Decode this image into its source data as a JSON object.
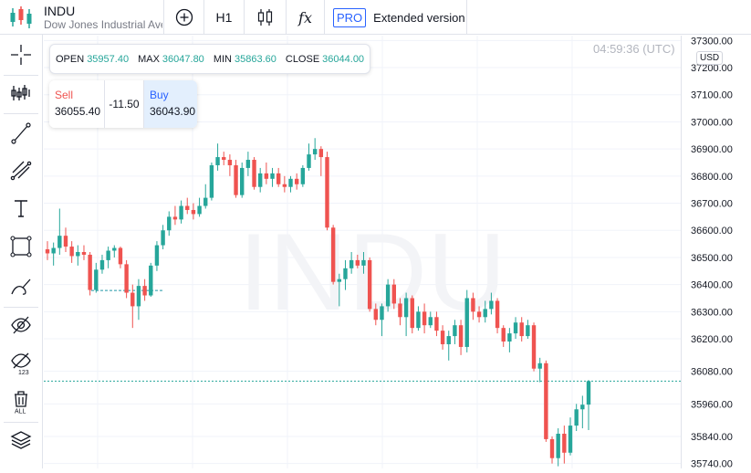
{
  "header": {
    "ticker": "INDU",
    "name": "Dow Jones Industrial Ave",
    "interval": "H1",
    "indicators_symbol": "fx",
    "pro_badge": "PRO",
    "extended_label": "Extended version",
    "colors": {
      "accent": "#2962ff",
      "up": "#26a69a",
      "down": "#ef5350"
    }
  },
  "legend": {
    "open_label": "OPEN",
    "open": "35957.40",
    "max_label": "MAX",
    "max": "36047.80",
    "min_label": "MIN",
    "min": "35863.60",
    "close_label": "CLOSE",
    "close": "36044.00"
  },
  "trade": {
    "sell_label": "Sell",
    "sell_price": "36055.40",
    "spread": "-11.50",
    "buy_label": "Buy",
    "buy_price": "36043.90"
  },
  "clock": "04:59:36 (UTC)",
  "currency": "USD",
  "sidebar_icons": [
    "crosshair-icon",
    "indicators-icon",
    "trendline-icon",
    "fib-icon",
    "text-icon",
    "rectangle-icon",
    "brush-icon",
    "hide-drawings-icon",
    "hide-labels-icon",
    "delete-all-icon",
    "layers-icon"
  ],
  "chart_data": {
    "type": "candlestick",
    "watermark": "INDU",
    "yaxis_ticks": [
      37300,
      37200,
      37100,
      37000,
      36900,
      36800,
      36700,
      36600,
      36500,
      36400,
      36300,
      36200,
      36080,
      35960,
      35840,
      35740
    ],
    "yaxis_tick_labels": [
      "37300.00",
      "37200.00",
      "37100.00",
      "37000.00",
      "36900.00",
      "36800.00",
      "36700.00",
      "36600.00",
      "36500.00",
      "36400.00",
      "36300.00",
      "36200.00",
      "36080.00",
      "35960.00",
      "35840.00",
      "35740.00"
    ],
    "ylim": [
      35722,
      37318
    ],
    "grid": true,
    "current_price": 36044.0,
    "gap_line_price": 36378,
    "candles": [
      {
        "o": 36530,
        "h": 36560,
        "l": 36490,
        "c": 36515
      },
      {
        "o": 36515,
        "h": 36555,
        "l": 36470,
        "c": 36535
      },
      {
        "o": 36535,
        "h": 36680,
        "l": 36510,
        "c": 36580
      },
      {
        "o": 36580,
        "h": 36610,
        "l": 36520,
        "c": 36540
      },
      {
        "o": 36540,
        "h": 36560,
        "l": 36480,
        "c": 36505
      },
      {
        "o": 36505,
        "h": 36545,
        "l": 36470,
        "c": 36520
      },
      {
        "o": 36520,
        "h": 36545,
        "l": 36490,
        "c": 36510
      },
      {
        "o": 36510,
        "h": 36520,
        "l": 36360,
        "c": 36380
      },
      {
        "o": 36380,
        "h": 36480,
        "l": 36370,
        "c": 36455
      },
      {
        "o": 36455,
        "h": 36510,
        "l": 36440,
        "c": 36490
      },
      {
        "o": 36490,
        "h": 36540,
        "l": 36460,
        "c": 36525
      },
      {
        "o": 36525,
        "h": 36545,
        "l": 36500,
        "c": 36535
      },
      {
        "o": 36535,
        "h": 36540,
        "l": 36460,
        "c": 36475
      },
      {
        "o": 36475,
        "h": 36490,
        "l": 36350,
        "c": 36370
      },
      {
        "o": 36370,
        "h": 36400,
        "l": 36240,
        "c": 36320
      },
      {
        "o": 36320,
        "h": 36420,
        "l": 36270,
        "c": 36395
      },
      {
        "o": 36395,
        "h": 36420,
        "l": 36340,
        "c": 36360
      },
      {
        "o": 36360,
        "h": 36480,
        "l": 36355,
        "c": 36470
      },
      {
        "o": 36470,
        "h": 36560,
        "l": 36450,
        "c": 36545
      },
      {
        "o": 36545,
        "h": 36620,
        "l": 36530,
        "c": 36600
      },
      {
        "o": 36600,
        "h": 36670,
        "l": 36580,
        "c": 36650
      },
      {
        "o": 36650,
        "h": 36690,
        "l": 36620,
        "c": 36640
      },
      {
        "o": 36640,
        "h": 36710,
        "l": 36625,
        "c": 36690
      },
      {
        "o": 36690,
        "h": 36720,
        "l": 36660,
        "c": 36675
      },
      {
        "o": 36675,
        "h": 36700,
        "l": 36640,
        "c": 36660
      },
      {
        "o": 36660,
        "h": 36720,
        "l": 36650,
        "c": 36690
      },
      {
        "o": 36690,
        "h": 36770,
        "l": 36680,
        "c": 36720
      },
      {
        "o": 36720,
        "h": 36850,
        "l": 36710,
        "c": 36840
      },
      {
        "o": 36840,
        "h": 36920,
        "l": 36820,
        "c": 36870
      },
      {
        "o": 36870,
        "h": 36890,
        "l": 36840,
        "c": 36860
      },
      {
        "o": 36860,
        "h": 36880,
        "l": 36800,
        "c": 36840
      },
      {
        "o": 36840,
        "h": 36860,
        "l": 36720,
        "c": 36730
      },
      {
        "o": 36730,
        "h": 36850,
        "l": 36720,
        "c": 36830
      },
      {
        "o": 36830,
        "h": 36890,
        "l": 36800,
        "c": 36860
      },
      {
        "o": 36860,
        "h": 36870,
        "l": 36750,
        "c": 36760
      },
      {
        "o": 36760,
        "h": 36830,
        "l": 36740,
        "c": 36810
      },
      {
        "o": 36810,
        "h": 36850,
        "l": 36770,
        "c": 36790
      },
      {
        "o": 36790,
        "h": 36830,
        "l": 36760,
        "c": 36810
      },
      {
        "o": 36810,
        "h": 36830,
        "l": 36760,
        "c": 36770
      },
      {
        "o": 36770,
        "h": 36800,
        "l": 36740,
        "c": 36760
      },
      {
        "o": 36760,
        "h": 36800,
        "l": 36740,
        "c": 36790
      },
      {
        "o": 36790,
        "h": 36810,
        "l": 36750,
        "c": 36770
      },
      {
        "o": 36770,
        "h": 36840,
        "l": 36760,
        "c": 36830
      },
      {
        "o": 36830,
        "h": 36920,
        "l": 36820,
        "c": 36880
      },
      {
        "o": 36880,
        "h": 36940,
        "l": 36860,
        "c": 36900
      },
      {
        "o": 36900,
        "h": 36910,
        "l": 36800,
        "c": 36870
      },
      {
        "o": 36870,
        "h": 36890,
        "l": 36600,
        "c": 36610
      },
      {
        "o": 36610,
        "h": 36620,
        "l": 36400,
        "c": 36410
      },
      {
        "o": 36410,
        "h": 36440,
        "l": 36320,
        "c": 36420
      },
      {
        "o": 36420,
        "h": 36490,
        "l": 36380,
        "c": 36460
      },
      {
        "o": 36460,
        "h": 36520,
        "l": 36440,
        "c": 36490
      },
      {
        "o": 36490,
        "h": 36510,
        "l": 36460,
        "c": 36470
      },
      {
        "o": 36470,
        "h": 36520,
        "l": 36440,
        "c": 36490
      },
      {
        "o": 36490,
        "h": 36500,
        "l": 36300,
        "c": 36310
      },
      {
        "o": 36310,
        "h": 36330,
        "l": 36250,
        "c": 36270
      },
      {
        "o": 36270,
        "h": 36330,
        "l": 36210,
        "c": 36320
      },
      {
        "o": 36320,
        "h": 36420,
        "l": 36300,
        "c": 36400
      },
      {
        "o": 36400,
        "h": 36420,
        "l": 36310,
        "c": 36330
      },
      {
        "o": 36330,
        "h": 36350,
        "l": 36250,
        "c": 36280
      },
      {
        "o": 36280,
        "h": 36370,
        "l": 36210,
        "c": 36350
      },
      {
        "o": 36350,
        "h": 36360,
        "l": 36220,
        "c": 36240
      },
      {
        "o": 36240,
        "h": 36320,
        "l": 36230,
        "c": 36300
      },
      {
        "o": 36300,
        "h": 36330,
        "l": 36220,
        "c": 36250
      },
      {
        "o": 36250,
        "h": 36300,
        "l": 36240,
        "c": 36280
      },
      {
        "o": 36280,
        "h": 36300,
        "l": 36210,
        "c": 36230
      },
      {
        "o": 36230,
        "h": 36250,
        "l": 36160,
        "c": 36180
      },
      {
        "o": 36180,
        "h": 36230,
        "l": 36120,
        "c": 36210
      },
      {
        "o": 36210,
        "h": 36270,
        "l": 36180,
        "c": 36250
      },
      {
        "o": 36250,
        "h": 36270,
        "l": 36140,
        "c": 36170
      },
      {
        "o": 36170,
        "h": 36380,
        "l": 36150,
        "c": 36350
      },
      {
        "o": 36350,
        "h": 36370,
        "l": 36270,
        "c": 36300
      },
      {
        "o": 36300,
        "h": 36320,
        "l": 36260,
        "c": 36280
      },
      {
        "o": 36280,
        "h": 36340,
        "l": 36260,
        "c": 36310
      },
      {
        "o": 36310,
        "h": 36370,
        "l": 36290,
        "c": 36340
      },
      {
        "o": 36340,
        "h": 36350,
        "l": 36220,
        "c": 36240
      },
      {
        "o": 36240,
        "h": 36250,
        "l": 36170,
        "c": 36190
      },
      {
        "o": 36190,
        "h": 36240,
        "l": 36150,
        "c": 36220
      },
      {
        "o": 36220,
        "h": 36280,
        "l": 36200,
        "c": 36260
      },
      {
        "o": 36260,
        "h": 36280,
        "l": 36190,
        "c": 36210
      },
      {
        "o": 36210,
        "h": 36270,
        "l": 36200,
        "c": 36250
      },
      {
        "o": 36250,
        "h": 36260,
        "l": 36080,
        "c": 36090
      },
      {
        "o": 36090,
        "h": 36130,
        "l": 36040,
        "c": 36110
      },
      {
        "o": 36110,
        "h": 36120,
        "l": 35820,
        "c": 35830
      },
      {
        "o": 35830,
        "h": 35840,
        "l": 35740,
        "c": 35760
      },
      {
        "o": 35760,
        "h": 35870,
        "l": 35730,
        "c": 35850
      },
      {
        "o": 35850,
        "h": 35880,
        "l": 35740,
        "c": 35780
      },
      {
        "o": 35780,
        "h": 35910,
        "l": 35770,
        "c": 35880
      },
      {
        "o": 35880,
        "h": 35960,
        "l": 35860,
        "c": 35940
      },
      {
        "o": 35940,
        "h": 35990,
        "l": 35870,
        "c": 35957
      },
      {
        "o": 35957.4,
        "h": 36047.8,
        "l": 35863.6,
        "c": 36044
      }
    ]
  }
}
